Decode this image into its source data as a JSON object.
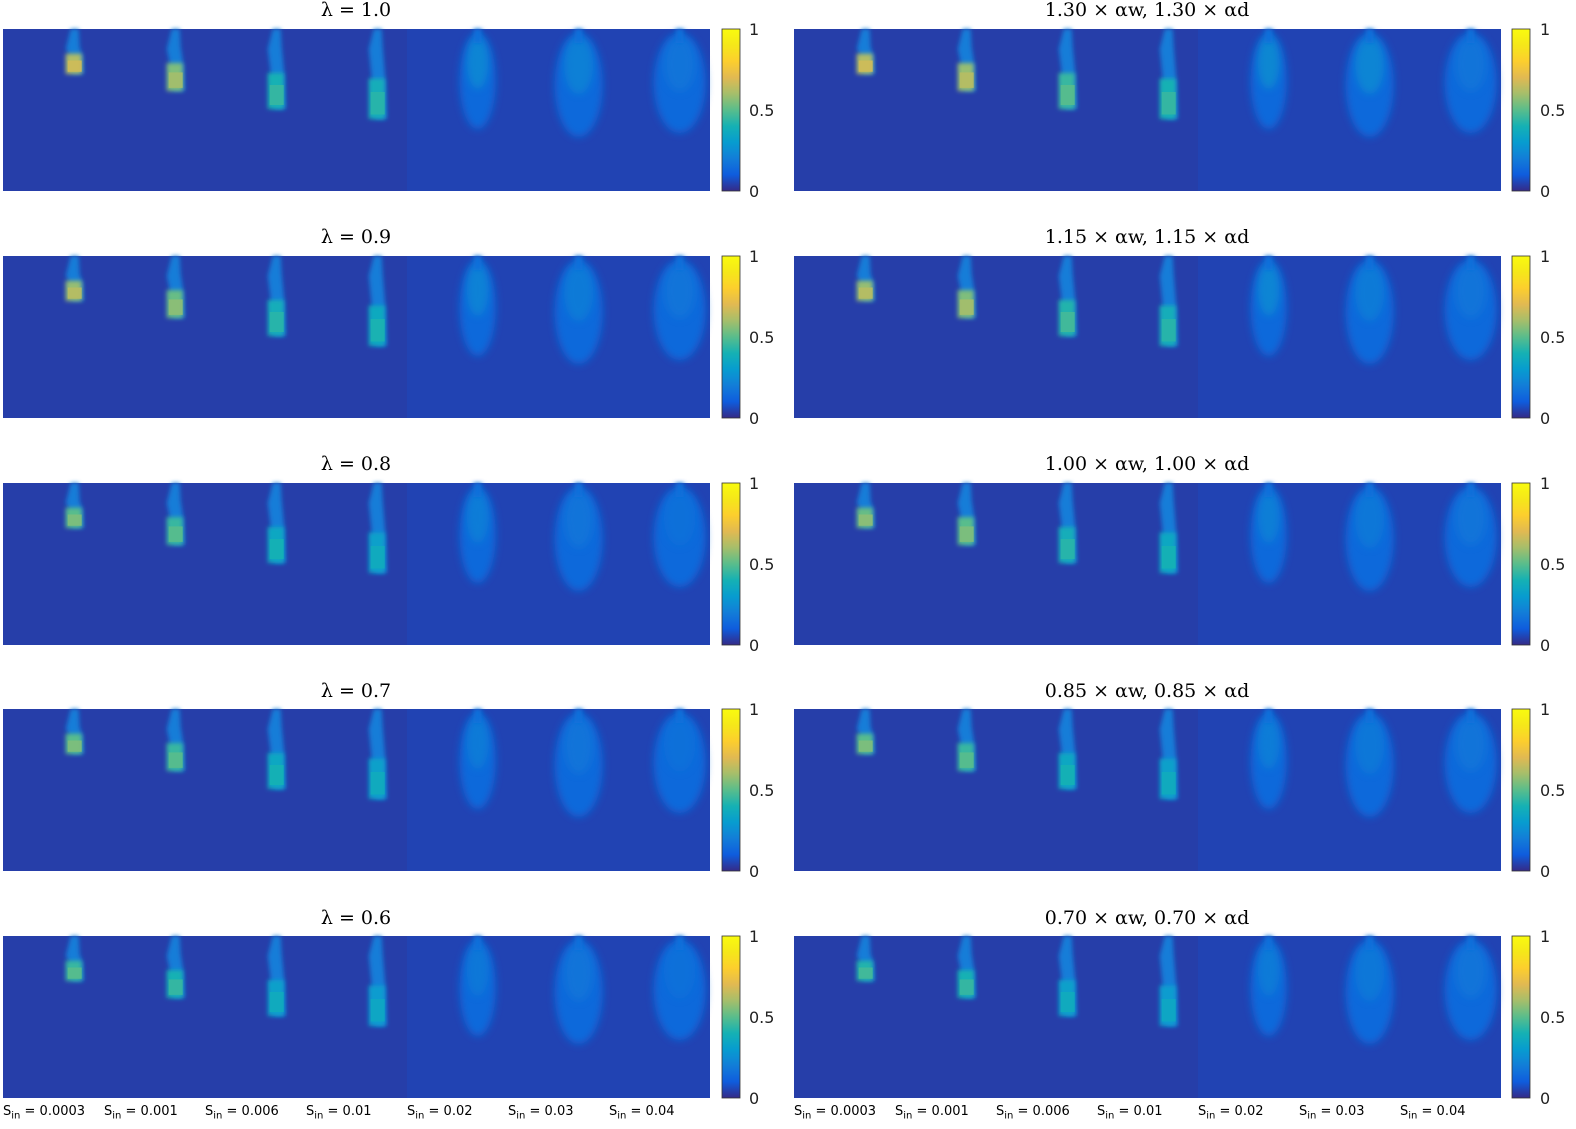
{
  "chart_data": {
    "type": "heatmap",
    "colormap": "parula",
    "clim": [
      0,
      1
    ],
    "colorbar_ticks": [
      "0",
      "0.5",
      "1"
    ],
    "x_labels": [
      "0.0003",
      "0.001",
      "0.006",
      "0.01",
      "0.02",
      "0.03",
      "0.04"
    ],
    "x_label_prefix": "S",
    "x_label_sub": "in",
    "x_label_sep": " = ",
    "columns": [
      {
        "panels": [
          {
            "title": "λ = 1.0",
            "peaks": [
              0.62,
              0.55,
              0.4,
              0.38,
              0.3,
              0.27,
              0.2
            ]
          },
          {
            "title": "λ = 0.9",
            "peaks": [
              0.58,
              0.52,
              0.38,
              0.36,
              0.28,
              0.24,
              0.2
            ]
          },
          {
            "title": "λ = 0.8",
            "peaks": [
              0.5,
              0.45,
              0.35,
              0.32,
              0.25,
              0.2,
              0.18
            ]
          },
          {
            "title": "λ = 0.7",
            "peaks": [
              0.5,
              0.45,
              0.35,
              0.32,
              0.24,
              0.2,
              0.18
            ]
          },
          {
            "title": "λ = 0.6",
            "peaks": [
              0.45,
              0.4,
              0.32,
              0.3,
              0.22,
              0.2,
              0.18
            ]
          }
        ]
      },
      {
        "panels": [
          {
            "title": "1.30 × αw, 1.30 × αd",
            "peaks": [
              0.62,
              0.58,
              0.45,
              0.4,
              0.32,
              0.3,
              0.2
            ]
          },
          {
            "title": "1.15 × αw, 1.15 × αd",
            "peaks": [
              0.58,
              0.55,
              0.42,
              0.38,
              0.3,
              0.24,
              0.2
            ]
          },
          {
            "title": "1.00 × αw, 1.00 × αd",
            "peaks": [
              0.52,
              0.5,
              0.38,
              0.35,
              0.26,
              0.22,
              0.2
            ]
          },
          {
            "title": "0.85 × αw, 0.85 × αd",
            "peaks": [
              0.5,
              0.45,
              0.35,
              0.32,
              0.25,
              0.22,
              0.2
            ]
          },
          {
            "title": "0.70 × αw, 0.70 × αd",
            "peaks": [
              0.42,
              0.4,
              0.32,
              0.3,
              0.24,
              0.22,
              0.2
            ]
          }
        ]
      }
    ]
  }
}
